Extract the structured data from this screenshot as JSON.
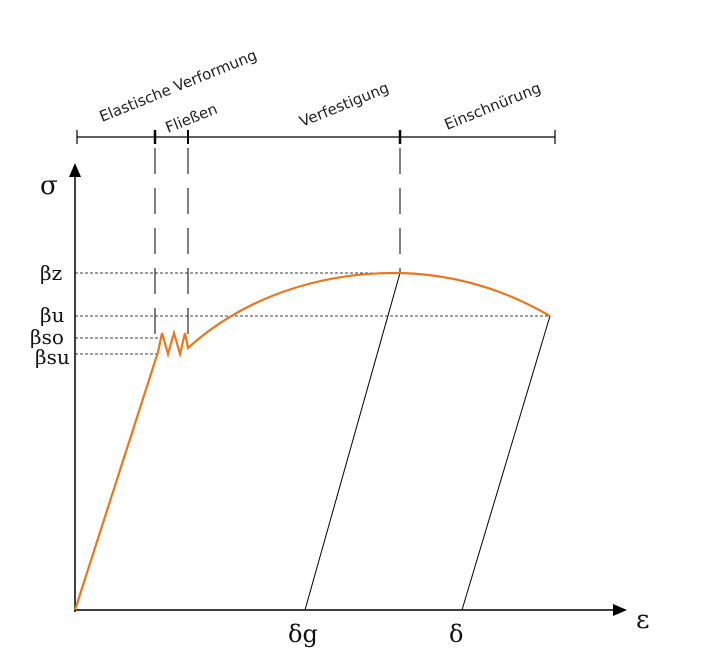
{
  "axes": {
    "y_label": "σ",
    "x_label": "ε"
  },
  "phases": [
    "Elastische Verformung",
    "Fließen",
    "Verfestigung",
    "Einschnürung"
  ],
  "levels": [
    "βz",
    "βu",
    "βso",
    "βsu"
  ],
  "strains": [
    "δg",
    "δ"
  ]
}
